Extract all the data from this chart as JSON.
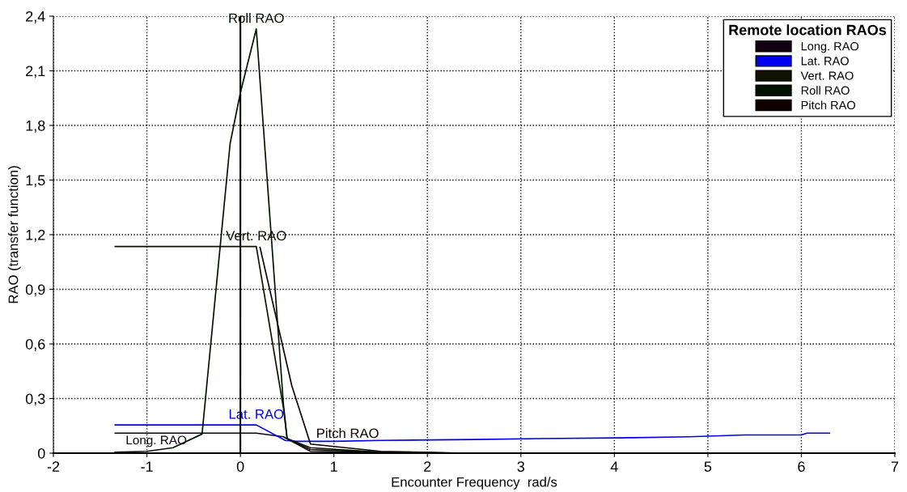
{
  "chart_data": {
    "type": "line",
    "xlabel": "Encounter Frequency  rad/s",
    "ylabel": "RAO (transfer function)",
    "legend_title": "Remote location RAOs",
    "xlim": [
      -2,
      7
    ],
    "ylim": [
      0,
      2.4
    ],
    "xticks": [
      -2,
      -1,
      0,
      1,
      2,
      3,
      4,
      5,
      6,
      7
    ],
    "yticks": [
      {
        "value": 0,
        "label": "0"
      },
      {
        "value": 0.3,
        "label": "0,3"
      },
      {
        "value": 0.6,
        "label": "0,6"
      },
      {
        "value": 0.9,
        "label": "0,9"
      },
      {
        "value": 1.2,
        "label": "1,2"
      },
      {
        "value": 1.5,
        "label": "1,5"
      },
      {
        "value": 1.8,
        "label": "1,8"
      },
      {
        "value": 2.1,
        "label": "2,1"
      },
      {
        "value": 2.4,
        "label": "2,4"
      }
    ],
    "grid": true,
    "legend": "top right",
    "line_style": "solid",
    "ref_lines": [
      {
        "axis": "x",
        "value": 0,
        "color": "#000000"
      }
    ],
    "series": [
      {
        "name": "Long. RAO",
        "color": "#110011",
        "x": [
          -1.34,
          0.17,
          0.46,
          0.75,
          1.5,
          2.4
        ],
        "values": [
          0.11,
          0.11,
          0.09,
          0.01,
          0.003,
          0
        ]
      },
      {
        "name": "Lat. RAO",
        "color": "#0000ee",
        "x": [
          -1.34,
          0.17,
          0.48,
          0.6,
          1.0,
          1.5,
          2.5,
          3.2,
          4.2,
          4.8,
          5.4,
          6.0,
          6.06,
          6.3
        ],
        "values": [
          0.155,
          0.155,
          0.07,
          0.065,
          0.065,
          0.07,
          0.075,
          0.08,
          0.085,
          0.09,
          0.1,
          0.1,
          0.11,
          0.11
        ]
      },
      {
        "name": "Vert. RAO",
        "color": "#111100",
        "x": [
          -1.34,
          0.17,
          0.46,
          0.5,
          0.75,
          1.5,
          2.4
        ],
        "values": [
          1.135,
          1.135,
          0.25,
          0.08,
          0.03,
          0.005,
          0
        ]
      },
      {
        "name": "Roll RAO",
        "color": "#001100",
        "x": [
          -1.34,
          -1.0,
          -0.72,
          -0.41,
          -0.11,
          0.0,
          0.17,
          0.46,
          0.5,
          0.75,
          1.5,
          2.4
        ],
        "values": [
          0.005,
          0.01,
          0.03,
          0.105,
          1.7,
          1.98,
          2.33,
          0.27,
          0.08,
          0.02,
          0.005,
          0
        ]
      },
      {
        "name": "Pitch RAO",
        "color": "#110000",
        "x": [
          0.21,
          0.55,
          0.75,
          1.5,
          2.4
        ],
        "values": [
          1.13,
          0.37,
          0.05,
          0.01,
          0
        ]
      }
    ],
    "annotations": [
      {
        "text": "Long. RAO",
        "x": -0.9,
        "y": 0.11
      },
      {
        "text": "Lat. RAO",
        "x": 0.17,
        "y": 0.155
      },
      {
        "text": "Vert. RAO",
        "x": 0.17,
        "y": 1.135
      },
      {
        "text": "Roll RAO",
        "x": 0.17,
        "y": 2.33
      },
      {
        "text": "Pitch RAO",
        "x": 0.75,
        "y": 0.05
      }
    ]
  }
}
